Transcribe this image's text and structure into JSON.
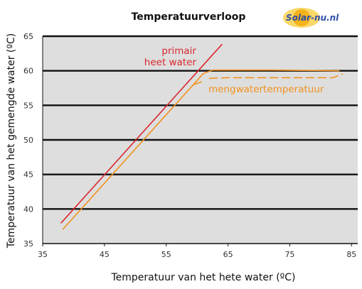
{
  "logo": {
    "text": "Solar-nu.nl",
    "colors": {
      "sun": "#f5b21b",
      "sun_glow": "#fbd86a",
      "text": "#2b4fa8"
    }
  },
  "colors": {
    "plot_bg": "#dedede",
    "grid": "#111111",
    "primair": "#d9272e",
    "meng": "#f0921e"
  },
  "chart_data": {
    "type": "line",
    "title": "Temperatuurverloop",
    "xlabel": "Temperatuur van het hete water (ºC)",
    "ylabel": "Temperatuur van het gemengde water (ºC)",
    "xlim": [
      35,
      86
    ],
    "ylim": [
      35,
      65
    ],
    "xticks": [
      35,
      45,
      55,
      65,
      75,
      85
    ],
    "yticks": [
      35,
      40,
      45,
      50,
      55,
      60,
      65
    ],
    "grid": "horizontal",
    "annotations": [
      {
        "text": "primair",
        "color": "#d9272e"
      },
      {
        "text": "heet water",
        "color": "#d9272e"
      },
      {
        "text": "mengwatertemperatuur",
        "color": "#f0921e"
      }
    ],
    "series": [
      {
        "color": "#d9272e",
        "style": "solid",
        "points": [
          [
            38,
            38.0
          ],
          [
            64,
            63.8
          ]
        ]
      },
      {
        "color": "#f0921e",
        "style": "solid",
        "points": [
          [
            38.3,
            37.1
          ],
          [
            59.5,
            58.1
          ],
          [
            61,
            59.6
          ],
          [
            62.5,
            60.1
          ],
          [
            72,
            60.1
          ],
          [
            83,
            60.0
          ]
        ]
      },
      {
        "color": "#f0921e",
        "style": "dashed",
        "points": [
          [
            59.5,
            58.0
          ],
          [
            61,
            58.5
          ]
        ]
      },
      {
        "color": "#f0921e",
        "style": "dashed",
        "points": [
          [
            62,
            58.9
          ],
          [
            65,
            59.0
          ],
          [
            75,
            59.0
          ],
          [
            82,
            59.0
          ],
          [
            83.5,
            59.5
          ]
        ]
      }
    ]
  }
}
